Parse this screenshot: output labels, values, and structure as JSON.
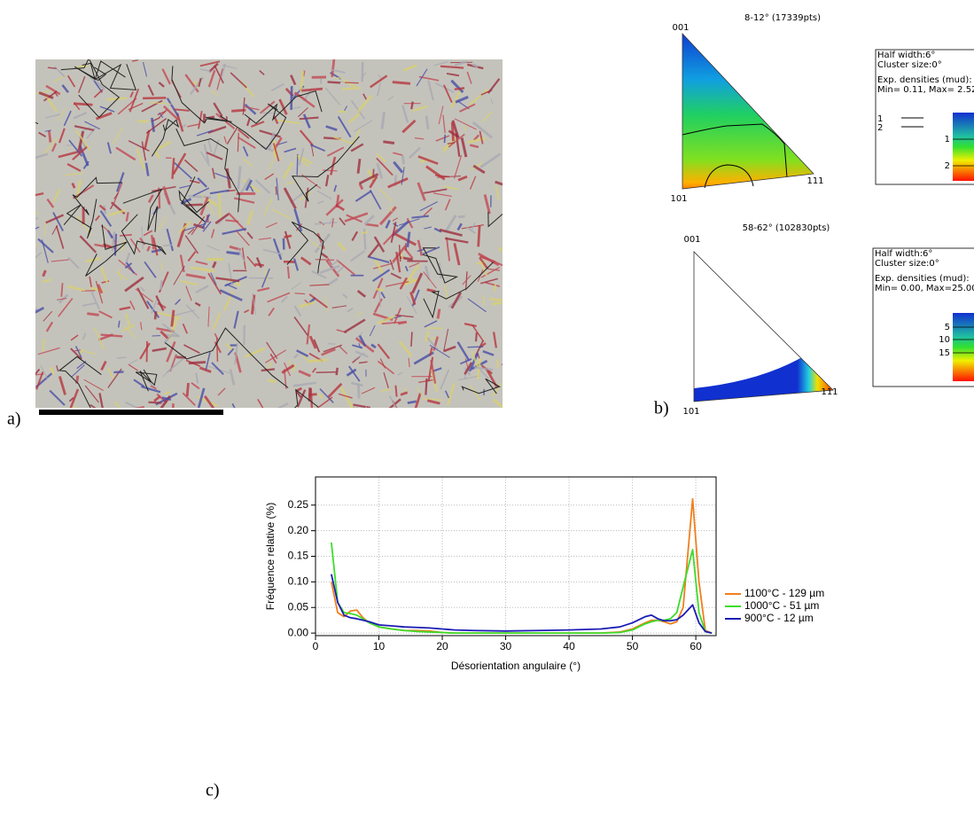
{
  "figure": {
    "labels": [
      "a)",
      "b)",
      "c)"
    ],
    "ipf": [
      {
        "title": "8-12° (17339pts)",
        "poles": [
          "001",
          "101",
          "111"
        ],
        "legend": [
          "Half width:6°",
          "Cluster size:0°",
          "Exp. densities (mud):",
          "Min= 0.11, Max= 2.52"
        ],
        "contours": [
          "1",
          "2"
        ],
        "colorbar_ticks": [
          1,
          2
        ]
      },
      {
        "title": "58-62° (102830pts)",
        "poles": [
          "001",
          "101",
          "111"
        ],
        "legend": [
          "Half width:6°",
          "Cluster size:0°",
          "Exp. densities (mud):",
          "Min= 0.00, Max=25.00"
        ],
        "colorbar_ticks": [
          5,
          10,
          15
        ]
      }
    ]
  },
  "chart_data": {
    "type": "line",
    "xlabel": "Désorientation angulaire (°)",
    "ylabel": "Fréquence relative (%)",
    "x": [
      2.5,
      3.5,
      4.5,
      5.5,
      6.5,
      7.5,
      8.5,
      10,
      12,
      14,
      16,
      18,
      20,
      22,
      25,
      30,
      35,
      40,
      45,
      48,
      50,
      52,
      53,
      54,
      55,
      56,
      57,
      58,
      59.5,
      60.5,
      61.5,
      62.5
    ],
    "series": [
      {
        "name": "1100°C - 129 µm",
        "color": "#f07f1e",
        "values": [
          0.1,
          0.04,
          0.032,
          0.043,
          0.045,
          0.03,
          0.02,
          0.012,
          0.008,
          0.005,
          0.005,
          0.004,
          0.001,
          0,
          0,
          0,
          0,
          0,
          0,
          0.002,
          0.008,
          0.02,
          0.025,
          0.025,
          0.022,
          0.018,
          0.022,
          0.05,
          0.262,
          0.1,
          0.005,
          0
        ]
      },
      {
        "name": "1000°C - 51 µm",
        "color": "#3ddc2c",
        "values": [
          0.177,
          0.06,
          0.04,
          0.038,
          0.035,
          0.028,
          0.02,
          0.012,
          0.008,
          0.005,
          0.003,
          0.002,
          0.001,
          0,
          0,
          0,
          0,
          0,
          0,
          0.001,
          0.006,
          0.018,
          0.022,
          0.025,
          0.025,
          0.028,
          0.04,
          0.09,
          0.163,
          0.04,
          0.003,
          0
        ]
      },
      {
        "name": "900°C - 12 µm",
        "color": "#1c1cb4",
        "values": [
          0.115,
          0.06,
          0.035,
          0.03,
          0.028,
          0.025,
          0.022,
          0.016,
          0.014,
          0.012,
          0.011,
          0.01,
          0.008,
          0.006,
          0.005,
          0.004,
          0.005,
          0.006,
          0.008,
          0.012,
          0.02,
          0.032,
          0.035,
          0.028,
          0.024,
          0.024,
          0.026,
          0.035,
          0.055,
          0.02,
          0.003,
          0
        ]
      }
    ],
    "xlim": [
      0,
      63.2
    ],
    "xticks": [
      0,
      10,
      20,
      30,
      40,
      50,
      60
    ],
    "ylim": [
      -0.005,
      0.305
    ],
    "yticks": [
      {
        "value": 0,
        "label": "0.00"
      },
      0.05,
      {
        "value": 0.1,
        "label": "0.10"
      },
      0.15,
      {
        "value": 0.2,
        "label": "0.20"
      },
      0.25
    ],
    "grid": true,
    "legend": "right"
  }
}
